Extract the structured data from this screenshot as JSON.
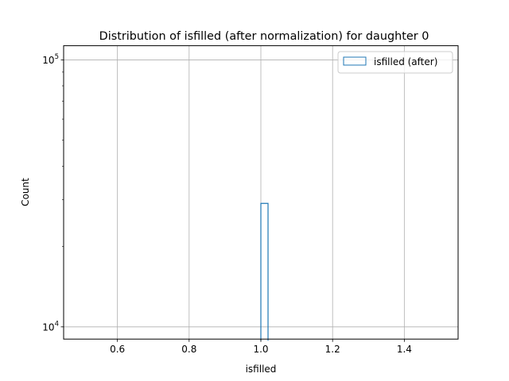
{
  "chart_data": {
    "type": "histogram",
    "title": "Distribution of isfilled (after normalization) for daughter 0",
    "xlabel": "isfilled",
    "ylabel": "Count",
    "xlim": [
      0.45,
      1.55
    ],
    "ylim": [
      9000,
      113000
    ],
    "yscale": "log",
    "grid": true,
    "legend_position": "top-right",
    "x_ticks": [
      0.6,
      0.8,
      1.0,
      1.2,
      1.4
    ],
    "x_tick_labels": [
      "0.6",
      "0.8",
      "1.0",
      "1.2",
      "1.4"
    ],
    "y_major_ticks": [
      10000,
      100000
    ],
    "y_tick_base": "10",
    "y_tick_exponents": [
      "4",
      "5"
    ],
    "series": [
      {
        "name": "isfilled (after)",
        "color": "#1f77b4",
        "histtype": "step",
        "bins": [
          {
            "x0": 1.0,
            "x1": 1.02,
            "count": 29000
          }
        ]
      }
    ]
  }
}
